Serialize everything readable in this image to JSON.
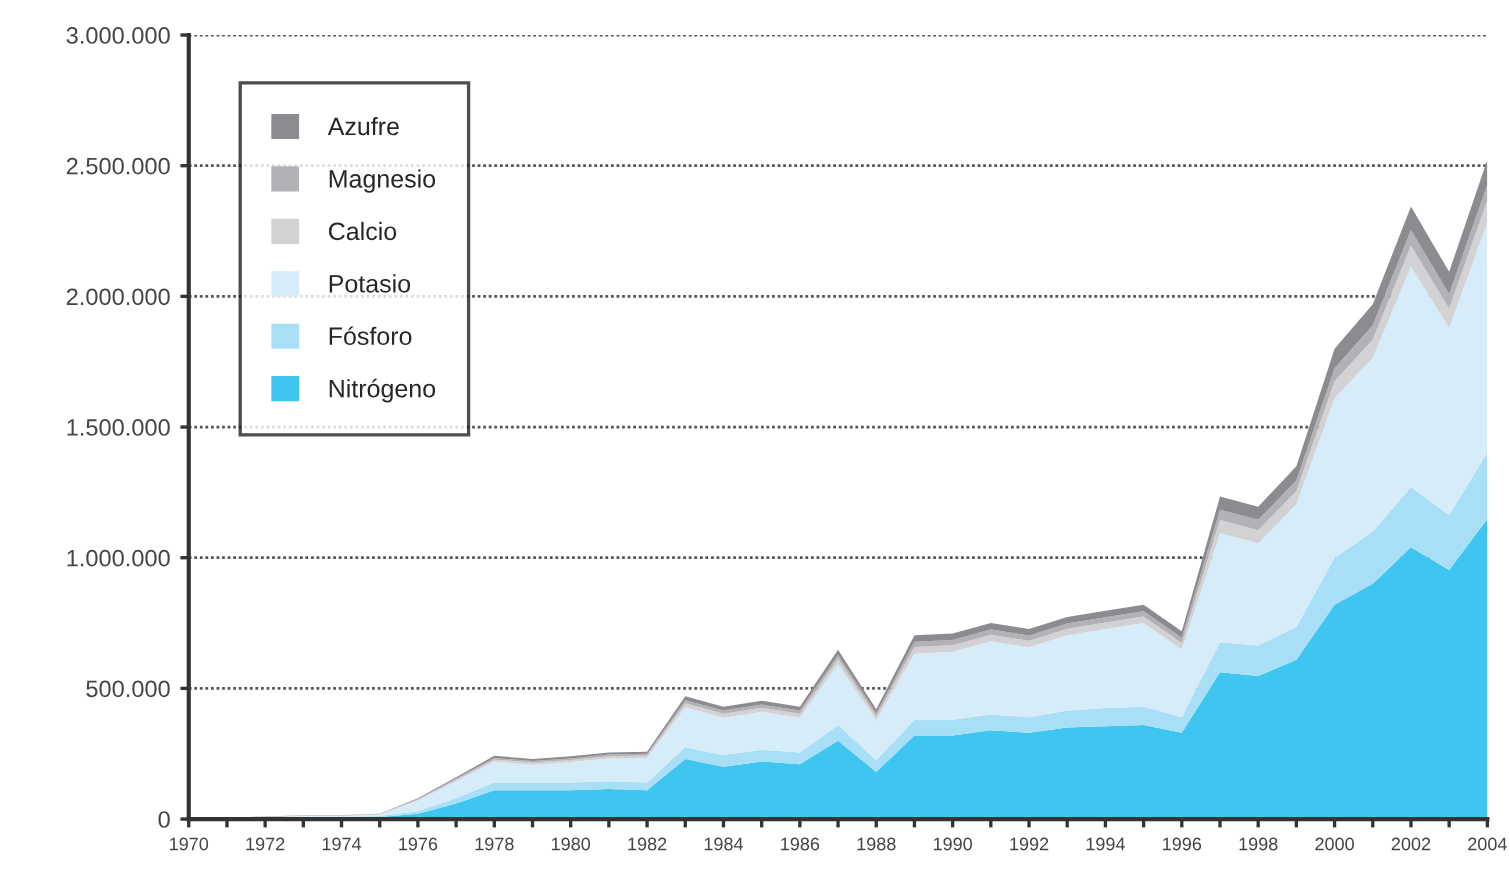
{
  "chart_data": {
    "type": "area",
    "stacked": true,
    "x": [
      1970,
      1971,
      1972,
      1973,
      1974,
      1975,
      1976,
      1977,
      1978,
      1979,
      1980,
      1981,
      1982,
      1983,
      1984,
      1985,
      1986,
      1987,
      1988,
      1989,
      1990,
      1991,
      1992,
      1993,
      1994,
      1995,
      1996,
      1997,
      1998,
      1999,
      2000,
      2001,
      2002,
      2003,
      2004
    ],
    "series": [
      {
        "name": "Nitrógeno",
        "color": "#3ec6f0",
        "values": [
          2000,
          2000,
          4000,
          6000,
          6000,
          8000,
          20000,
          60000,
          110000,
          110000,
          110000,
          115000,
          110000,
          230000,
          200000,
          220000,
          210000,
          300000,
          180000,
          320000,
          320000,
          340000,
          330000,
          350000,
          355000,
          360000,
          330000,
          562000,
          547000,
          610000,
          820000,
          900000,
          1040000,
          953000,
          1148000
        ]
      },
      {
        "name": "Fósforo",
        "color": "#a8def6",
        "values": [
          1000,
          1000,
          2000,
          3000,
          3000,
          4000,
          10000,
          20000,
          30000,
          30000,
          30000,
          30000,
          30000,
          45000,
          45000,
          45000,
          45000,
          60000,
          45000,
          60000,
          60000,
          60000,
          60000,
          65000,
          70000,
          70000,
          60000,
          115000,
          117000,
          125000,
          180000,
          200000,
          230000,
          210000,
          255000
        ]
      },
      {
        "name": "Potasio",
        "color": "#d6ecf8",
        "values": [
          2000,
          2000,
          1000,
          3000,
          3000,
          5000,
          41000,
          65000,
          80000,
          68000,
          78000,
          87000,
          95000,
          153000,
          143000,
          146000,
          133000,
          233000,
          153000,
          253000,
          260000,
          280000,
          267000,
          288000,
          302000,
          320000,
          259000,
          417000,
          391000,
          470000,
          610000,
          665000,
          844000,
          716000,
          880000
        ]
      },
      {
        "name": "Calcio",
        "color": "#d2d2d4",
        "values": [
          0,
          0,
          1000,
          1000,
          1000,
          1000,
          3000,
          5000,
          8000,
          8000,
          8000,
          8000,
          8000,
          15000,
          15000,
          15000,
          15000,
          20000,
          15000,
          25000,
          25000,
          25000,
          25000,
          25000,
          25000,
          25000,
          25000,
          50000,
          50000,
          50000,
          65000,
          70000,
          80000,
          75000,
          85000
        ]
      },
      {
        "name": "Magnesio",
        "color": "#b2b2b6",
        "values": [
          0,
          0,
          1000,
          1000,
          1000,
          1000,
          3000,
          5000,
          6000,
          6000,
          6000,
          7000,
          7000,
          12000,
          12000,
          12000,
          12000,
          15000,
          12000,
          20000,
          20000,
          20000,
          20000,
          20000,
          20000,
          20000,
          20000,
          40000,
          40000,
          40000,
          50000,
          55000,
          60000,
          55000,
          60000
        ]
      },
      {
        "name": "Azufre",
        "color": "#8c8c90",
        "values": [
          0,
          0,
          1000,
          1000,
          1000,
          1000,
          3000,
          5000,
          8000,
          8000,
          8000,
          8000,
          8000,
          15000,
          15000,
          15000,
          15000,
          20000,
          15000,
          25000,
          25000,
          25000,
          25000,
          25000,
          25000,
          25000,
          25000,
          50000,
          50000,
          55000,
          75000,
          80000,
          90000,
          85000,
          95000
        ]
      }
    ],
    "xlim": [
      1970,
      2004
    ],
    "xticks": [
      1970,
      {
        "value": 1971,
        "label": null
      },
      1972,
      {
        "value": 1973,
        "label": null
      },
      1974,
      {
        "value": 1975,
        "label": null
      },
      1976,
      {
        "value": 1977,
        "label": null
      },
      1978,
      {
        "value": 1979,
        "label": null
      },
      1980,
      {
        "value": 1981,
        "label": null
      },
      1982,
      {
        "value": 1983,
        "label": null
      },
      1984,
      {
        "value": 1985,
        "label": null
      },
      1986,
      {
        "value": 1987,
        "label": null
      },
      1988,
      {
        "value": 1989,
        "label": null
      },
      1990,
      {
        "value": 1991,
        "label": null
      },
      1992,
      {
        "value": 1993,
        "label": null
      },
      1994,
      {
        "value": 1995,
        "label": null
      },
      1996,
      {
        "value": 1997,
        "label": null
      },
      1998,
      {
        "value": 1999,
        "label": null
      },
      2000,
      {
        "value": 2001,
        "label": null
      },
      2002,
      {
        "value": 2003,
        "label": null
      },
      2004
    ],
    "ylim": [
      0,
      3000000
    ],
    "yticks": [
      {
        "value": 0,
        "label": "0"
      },
      {
        "value": 500000,
        "label": "500.000"
      },
      {
        "value": 1000000,
        "label": "1.000.000"
      },
      {
        "value": 1500000,
        "label": "1.500.000"
      },
      {
        "value": 2000000,
        "label": "2.000.000"
      },
      {
        "value": 2500000,
        "label": "2.500.000"
      },
      {
        "value": 3000000,
        "label": "3.000.000"
      }
    ],
    "grid": "y",
    "legend": "top left"
  }
}
